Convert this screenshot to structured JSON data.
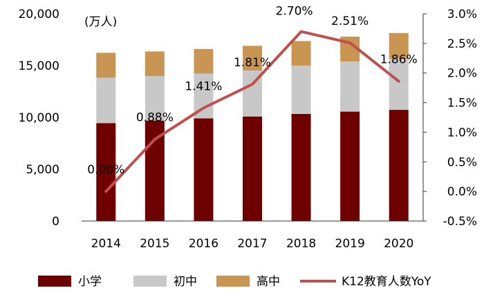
{
  "chart_data": {
    "type": "bar",
    "stacked": true,
    "unit_label": "(万人)",
    "categories": [
      "2014",
      "2015",
      "2016",
      "2017",
      "2018",
      "2019",
      "2020"
    ],
    "series": [
      {
        "name": "小学",
        "values": [
          9450,
          9690,
          9910,
          10090,
          10340,
          10560,
          10730
        ],
        "color": "#6e0000"
      },
      {
        "name": "初中",
        "values": [
          4390,
          4310,
          4330,
          4440,
          4650,
          4830,
          4910
        ],
        "color": "#c8c8c8"
      },
      {
        "name": "高中",
        "values": [
          2400,
          2370,
          2370,
          2380,
          2380,
          2410,
          2500
        ],
        "color": "#c99552"
      }
    ],
    "line_series": {
      "name": "K12教育人数YoY",
      "values": [
        0.0,
        0.88,
        1.41,
        1.81,
        2.7,
        2.51,
        1.86
      ],
      "labels": [
        "0.00%",
        "0.88%",
        "1.41%",
        "1.81%",
        "2.70%",
        "2.51%",
        "1.86%"
      ],
      "color": "#c0504d"
    },
    "y_left": {
      "min": 0,
      "max": 20000,
      "ticks": [
        "0",
        "5,000",
        "10,000",
        "15,000",
        "20,000"
      ],
      "tick_values": [
        0,
        5000,
        10000,
        15000,
        20000
      ]
    },
    "y_right": {
      "min": -0.5,
      "max": 3.0,
      "ticks": [
        "-0.5%",
        "0.0%",
        "0.5%",
        "1.0%",
        "1.5%",
        "2.0%",
        "2.5%",
        "3.0%"
      ],
      "tick_values": [
        -0.5,
        0.0,
        0.5,
        1.0,
        1.5,
        2.0,
        2.5,
        3.0
      ]
    },
    "legend_position": "bottom"
  }
}
